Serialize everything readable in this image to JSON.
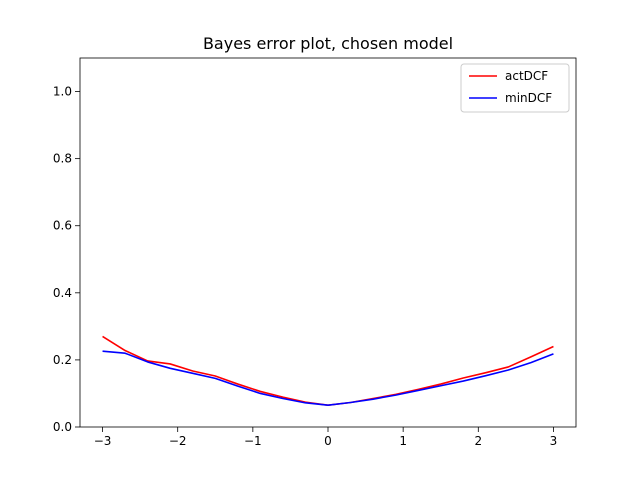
{
  "chart_data": {
    "type": "line",
    "title": "Bayes error plot, chosen model",
    "xlabel": "",
    "ylabel": "",
    "xlim": [
      -3.3,
      3.3
    ],
    "ylim": [
      0,
      1.1
    ],
    "xticks": [
      -3,
      -2,
      -1,
      0,
      1,
      2,
      3
    ],
    "xtick_labels": [
      "−3",
      "−2",
      "−1",
      "0",
      "1",
      "2",
      "3"
    ],
    "yticks": [
      0.0,
      0.2,
      0.4,
      0.6,
      0.8,
      1.0
    ],
    "ytick_labels": [
      "0.0",
      "0.2",
      "0.4",
      "0.6",
      "0.8",
      "1.0"
    ],
    "grid": false,
    "legend_position": "top-right",
    "x": [
      -3,
      -2.7,
      -2.4,
      -2.1,
      -1.8,
      -1.5,
      -1.2,
      -0.9,
      -0.6,
      -0.3,
      0,
      0.3,
      0.6,
      0.9,
      1.2,
      1.5,
      1.8,
      2.1,
      2.4,
      2.7,
      3
    ],
    "series": [
      {
        "name": "actDCF",
        "color": "#ff0000",
        "values": [
          0.27,
          0.228,
          0.197,
          0.188,
          0.167,
          0.152,
          0.128,
          0.106,
          0.089,
          0.074,
          0.065,
          0.073,
          0.085,
          0.097,
          0.112,
          0.128,
          0.146,
          0.162,
          0.179,
          0.209,
          0.24
        ]
      },
      {
        "name": "minDCF",
        "color": "#0000ff",
        "values": [
          0.226,
          0.22,
          0.194,
          0.175,
          0.16,
          0.145,
          0.122,
          0.1,
          0.085,
          0.072,
          0.065,
          0.073,
          0.083,
          0.095,
          0.109,
          0.123,
          0.137,
          0.153,
          0.17,
          0.192,
          0.218
        ]
      }
    ]
  }
}
